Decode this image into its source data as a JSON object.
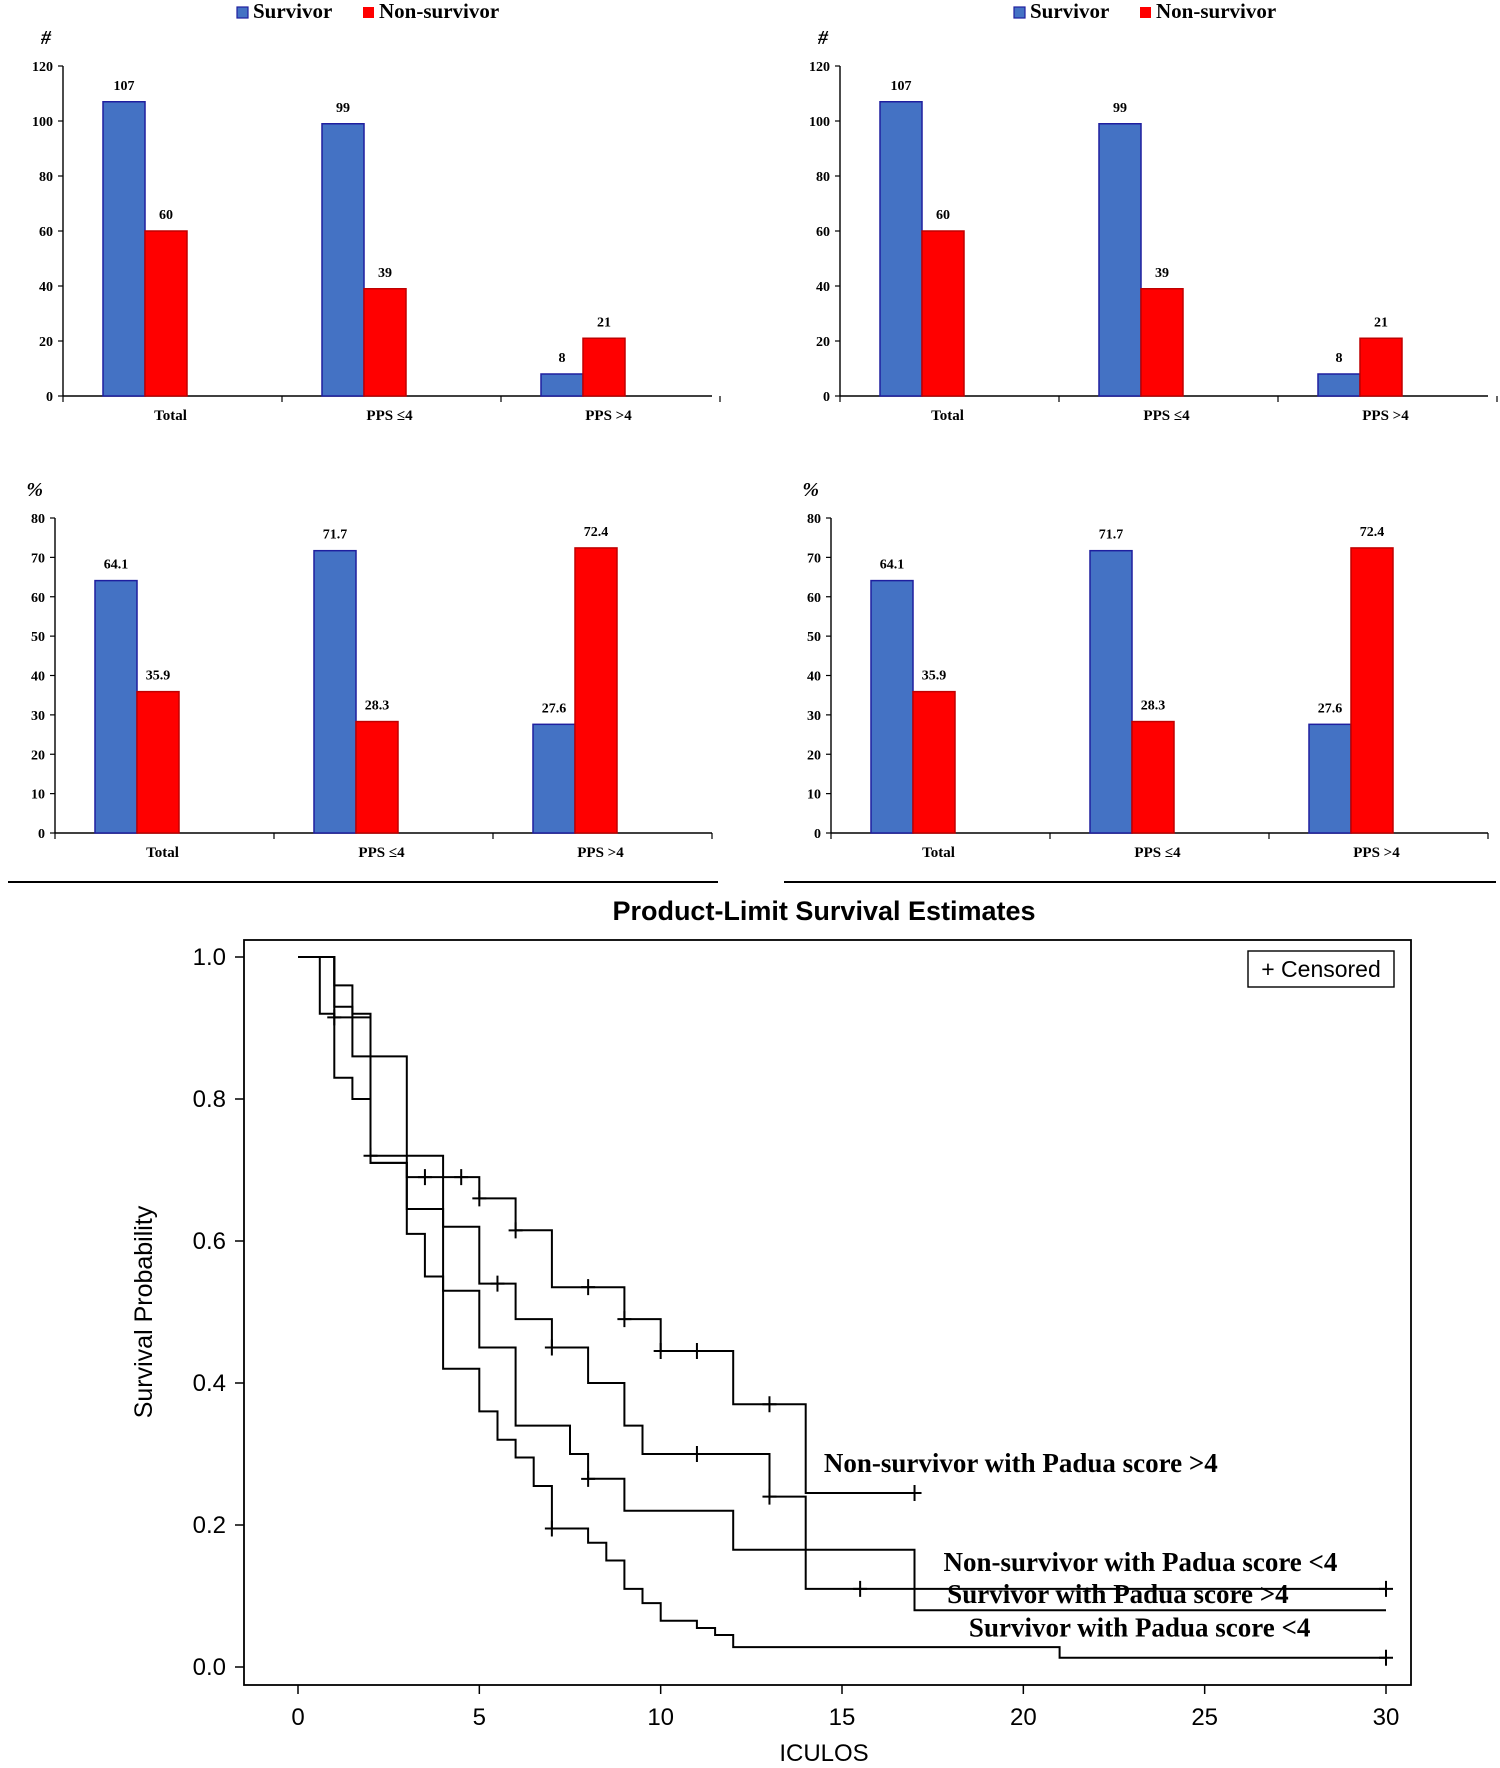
{
  "colors": {
    "survivor": "#4472C4",
    "survivor_edge": "#1f1f9f",
    "nonsurvivor": "#FF0000",
    "axis": "#000000",
    "km_line": "#000000"
  },
  "chart_data": [
    {
      "type": "bar",
      "panel": "top-left",
      "ylabel": "#",
      "legend": [
        "Survivor",
        "Non-survivor"
      ],
      "categories": [
        "Total",
        "PPS ≤4",
        "PPS >4"
      ],
      "series": [
        {
          "name": "Survivor",
          "values": [
            107,
            99,
            8
          ],
          "labels": [
            "107",
            "99",
            "8"
          ]
        },
        {
          "name": "Non-survivor",
          "values": [
            60,
            39,
            21
          ],
          "labels": [
            "60",
            "39",
            "21"
          ]
        }
      ],
      "ylim": [
        0,
        120
      ],
      "yticks": [
        "0",
        "20",
        "40",
        "60",
        "80",
        "100",
        "120"
      ]
    },
    {
      "type": "bar",
      "panel": "top-right",
      "ylabel": "#",
      "legend": [
        "Survivor",
        "Non-survivor"
      ],
      "categories": [
        "Total",
        "PPS ≤4",
        "PPS >4"
      ],
      "series": [
        {
          "name": "Survivor",
          "values": [
            107,
            99,
            8
          ],
          "labels": [
            "107",
            "99",
            "8"
          ]
        },
        {
          "name": "Non-survivor",
          "values": [
            60,
            39,
            21
          ],
          "labels": [
            "60",
            "39",
            "21"
          ]
        }
      ],
      "ylim": [
        0,
        120
      ],
      "yticks": [
        "0",
        "20",
        "40",
        "60",
        "80",
        "100",
        "120"
      ]
    },
    {
      "type": "bar",
      "panel": "middle-left",
      "ylabel": "%",
      "categories": [
        "Total",
        "PPS ≤4",
        "PPS >4"
      ],
      "series": [
        {
          "name": "Survivor",
          "values": [
            64.1,
            71.7,
            27.6
          ],
          "labels": [
            "64.1",
            "71.7",
            "27.6"
          ]
        },
        {
          "name": "Non-survivor",
          "values": [
            35.9,
            28.3,
            72.4
          ],
          "labels": [
            "35.9",
            "28.3",
            "72.4"
          ]
        }
      ],
      "ylim": [
        0,
        80
      ],
      "yticks": [
        "0",
        "10",
        "20",
        "30",
        "40",
        "50",
        "60",
        "70",
        "80"
      ]
    },
    {
      "type": "bar",
      "panel": "middle-right",
      "ylabel": "%",
      "categories": [
        "Total",
        "PPS ≤4",
        "PPS >4"
      ],
      "series": [
        {
          "name": "Survivor",
          "values": [
            64.1,
            71.7,
            27.6
          ],
          "labels": [
            "64.1",
            "71.7",
            "27.6"
          ]
        },
        {
          "name": "Non-survivor",
          "values": [
            35.9,
            28.3,
            72.4
          ],
          "labels": [
            "35.9",
            "28.3",
            "72.4"
          ]
        }
      ],
      "ylim": [
        0,
        80
      ],
      "yticks": [
        "0",
        "10",
        "20",
        "30",
        "40",
        "50",
        "60",
        "70",
        "80"
      ]
    },
    {
      "type": "line",
      "subtype": "kaplan-meier",
      "title": "Product-Limit Survival Estimates",
      "xlabel": "ICULOS",
      "ylabel": "Survival Probability",
      "xlim": [
        0,
        30
      ],
      "ylim": [
        0,
        1
      ],
      "xticks": [
        "0",
        "5",
        "10",
        "15",
        "20",
        "25",
        "30"
      ],
      "yticks": [
        "0.0",
        "0.2",
        "0.4",
        "0.6",
        "0.8",
        "1.0"
      ],
      "legend": "+ Censored",
      "series": [
        {
          "name": "Non-survivor with Padua score >4",
          "points": [
            [
              0,
              1.0
            ],
            [
              1,
              1.0
            ],
            [
              1,
              0.96
            ],
            [
              1.5,
              0.96
            ],
            [
              1.5,
              0.92
            ],
            [
              2,
              0.92
            ],
            [
              2,
              0.86
            ],
            [
              3,
              0.86
            ],
            [
              3,
              0.72
            ],
            [
              4,
              0.72
            ],
            [
              4,
              0.69
            ],
            [
              5,
              0.69
            ],
            [
              5,
              0.66
            ],
            [
              6,
              0.66
            ],
            [
              6,
              0.615
            ],
            [
              7,
              0.615
            ],
            [
              7,
              0.535
            ],
            [
              9,
              0.535
            ],
            [
              9,
              0.49
            ],
            [
              10,
              0.49
            ],
            [
              10,
              0.445
            ],
            [
              12,
              0.445
            ],
            [
              12,
              0.37
            ],
            [
              14,
              0.37
            ],
            [
              14,
              0.245
            ],
            [
              17,
              0.245
            ]
          ],
          "censored": [
            [
              3.5,
              0.69
            ],
            [
              4.5,
              0.69
            ],
            [
              5,
              0.66
            ],
            [
              6,
              0.615
            ],
            [
              8,
              0.535
            ],
            [
              9,
              0.49
            ],
            [
              10,
              0.445
            ],
            [
              11,
              0.445
            ],
            [
              13,
              0.37
            ],
            [
              17,
              0.245
            ]
          ]
        },
        {
          "name": "Non-survivor with Padua score <4",
          "points": [
            [
              0,
              1.0
            ],
            [
              1,
              1.0
            ],
            [
              1,
              0.93
            ],
            [
              1.5,
              0.93
            ],
            [
              1.5,
              0.86
            ],
            [
              2,
              0.86
            ],
            [
              2,
              0.71
            ],
            [
              3,
              0.71
            ],
            [
              3,
              0.69
            ],
            [
              4,
              0.69
            ],
            [
              4,
              0.62
            ],
            [
              5,
              0.62
            ],
            [
              5,
              0.54
            ],
            [
              6,
              0.54
            ],
            [
              6,
              0.49
            ],
            [
              7,
              0.49
            ],
            [
              7,
              0.45
            ],
            [
              8,
              0.45
            ],
            [
              8,
              0.4
            ],
            [
              9,
              0.4
            ],
            [
              9,
              0.34
            ],
            [
              9.5,
              0.34
            ],
            [
              9.5,
              0.3
            ],
            [
              13,
              0.3
            ],
            [
              13,
              0.24
            ],
            [
              14,
              0.24
            ],
            [
              14,
              0.11
            ],
            [
              30,
              0.11
            ]
          ],
          "censored": [
            [
              5.5,
              0.54
            ],
            [
              7,
              0.45
            ],
            [
              11,
              0.3
            ],
            [
              13,
              0.24
            ],
            [
              15.5,
              0.11
            ],
            [
              30,
              0.11
            ]
          ]
        },
        {
          "name": "Survivor with Padua score >4",
          "points": [
            [
              0,
              1.0
            ],
            [
              1,
              1.0
            ],
            [
              1,
              0.915
            ],
            [
              2,
              0.915
            ],
            [
              2,
              0.72
            ],
            [
              3,
              0.72
            ],
            [
              3,
              0.645
            ],
            [
              4,
              0.645
            ],
            [
              4,
              0.53
            ],
            [
              5,
              0.53
            ],
            [
              5,
              0.45
            ],
            [
              6,
              0.45
            ],
            [
              6,
              0.34
            ],
            [
              7.5,
              0.34
            ],
            [
              7.5,
              0.3
            ],
            [
              8,
              0.3
            ],
            [
              8,
              0.265
            ],
            [
              9,
              0.265
            ],
            [
              9,
              0.22
            ],
            [
              12,
              0.22
            ],
            [
              12,
              0.165
            ],
            [
              17,
              0.165
            ],
            [
              17,
              0.08
            ],
            [
              30,
              0.08
            ]
          ],
          "censored": [
            [
              1,
              0.915
            ],
            [
              2,
              0.72
            ],
            [
              8,
              0.265
            ]
          ]
        },
        {
          "name": "Survivor with Padua score <4",
          "points": [
            [
              0,
              1.0
            ],
            [
              0.6,
              1.0
            ],
            [
              0.6,
              0.92
            ],
            [
              1,
              0.92
            ],
            [
              1,
              0.83
            ],
            [
              1.5,
              0.83
            ],
            [
              1.5,
              0.8
            ],
            [
              2,
              0.8
            ],
            [
              2,
              0.71
            ],
            [
              3,
              0.71
            ],
            [
              3,
              0.61
            ],
            [
              3.5,
              0.61
            ],
            [
              3.5,
              0.55
            ],
            [
              4,
              0.55
            ],
            [
              4,
              0.42
            ],
            [
              5,
              0.42
            ],
            [
              5,
              0.36
            ],
            [
              5.5,
              0.36
            ],
            [
              5.5,
              0.32
            ],
            [
              6,
              0.32
            ],
            [
              6,
              0.295
            ],
            [
              6.5,
              0.295
            ],
            [
              6.5,
              0.255
            ],
            [
              7,
              0.255
            ],
            [
              7,
              0.195
            ],
            [
              8,
              0.195
            ],
            [
              8,
              0.175
            ],
            [
              8.5,
              0.175
            ],
            [
              8.5,
              0.15
            ],
            [
              9,
              0.15
            ],
            [
              9,
              0.11
            ],
            [
              9.5,
              0.11
            ],
            [
              9.5,
              0.09
            ],
            [
              10,
              0.09
            ],
            [
              10,
              0.065
            ],
            [
              11,
              0.065
            ],
            [
              11,
              0.055
            ],
            [
              11.5,
              0.055
            ],
            [
              11.5,
              0.045
            ],
            [
              12,
              0.045
            ],
            [
              12,
              0.028
            ],
            [
              21,
              0.028
            ],
            [
              21,
              0.013
            ],
            [
              30,
              0.013
            ]
          ],
          "censored": [
            [
              7,
              0.195
            ],
            [
              30,
              0.013
            ]
          ]
        }
      ],
      "annotations": [
        {
          "text": "Non-survivor with Padua score >4",
          "at": [
            14.5,
            0.275
          ]
        },
        {
          "text": "Non-survivor with Padua score <4",
          "at": [
            17.8,
            0.135
          ]
        },
        {
          "text": "Survivor with Padua score >4",
          "at": [
            17.9,
            0.09
          ]
        },
        {
          "text": "Survivor with Padua score <4",
          "at": [
            18.5,
            0.043
          ]
        }
      ]
    }
  ]
}
